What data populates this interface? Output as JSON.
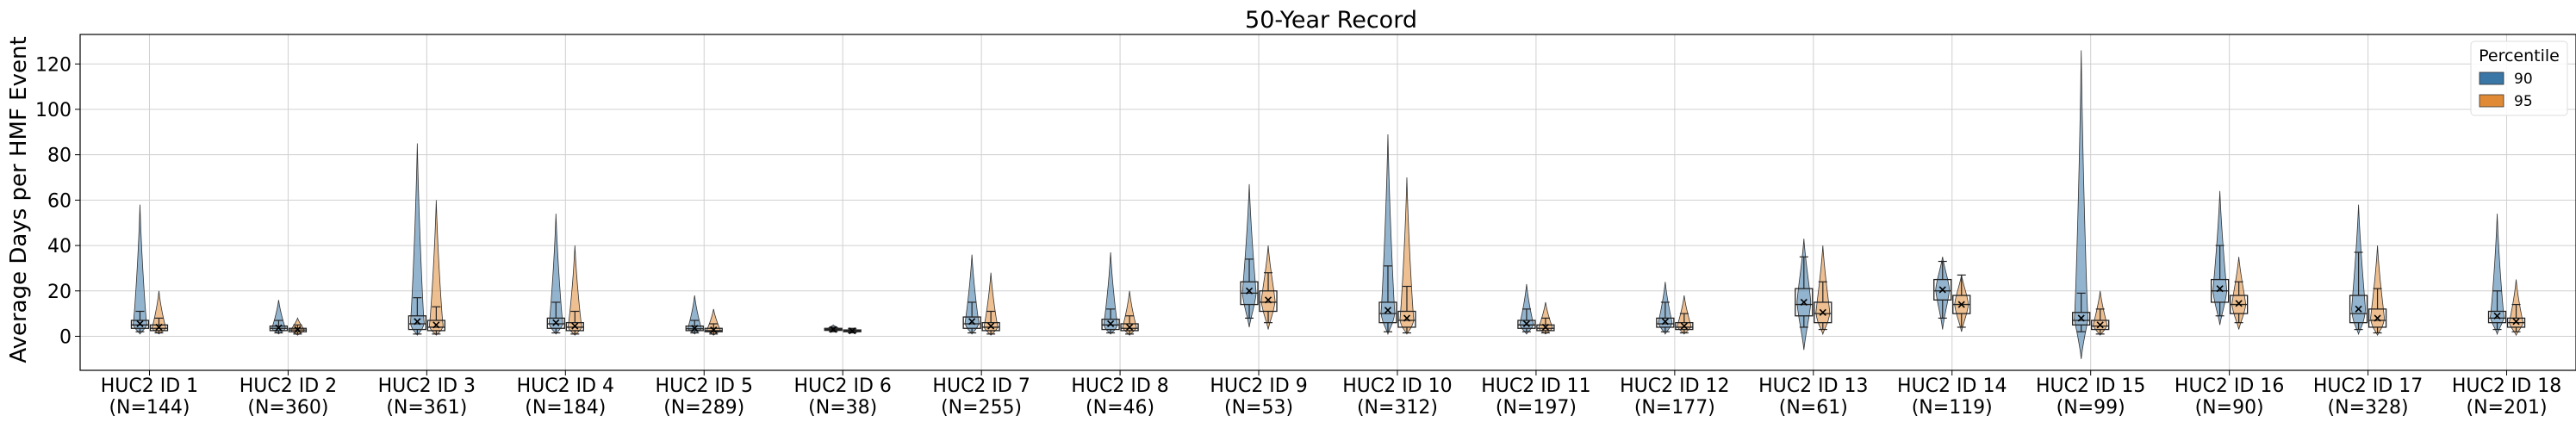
{
  "chart_data": {
    "type": "box",
    "title": "50-Year Record",
    "xlabel": "",
    "ylabel": "Average Days per HMF Event",
    "ylim": [
      -15,
      133
    ],
    "yticks": [
      0,
      20,
      40,
      60,
      80,
      100,
      120
    ],
    "grid": true,
    "legend": {
      "title": "Percentile",
      "position": "top-right",
      "entries": [
        {
          "label": "90",
          "color": "#3a76a6"
        },
        {
          "label": "95",
          "color": "#e08a35"
        }
      ]
    },
    "categories": [
      {
        "label": "HUC2 ID 1",
        "n": "(N=144)"
      },
      {
        "label": "HUC2 ID 2",
        "n": "(N=360)"
      },
      {
        "label": "HUC2 ID 3",
        "n": "(N=361)"
      },
      {
        "label": "HUC2 ID 4",
        "n": "(N=184)"
      },
      {
        "label": "HUC2 ID 5",
        "n": "(N=289)"
      },
      {
        "label": "HUC2 ID 6",
        "n": "(N=38)"
      },
      {
        "label": "HUC2 ID 7",
        "n": "(N=255)"
      },
      {
        "label": "HUC2 ID 8",
        "n": "(N=46)"
      },
      {
        "label": "HUC2 ID 9",
        "n": "(N=53)"
      },
      {
        "label": "HUC2 ID 10",
        "n": "(N=312)"
      },
      {
        "label": "HUC2 ID 11",
        "n": "(N=197)"
      },
      {
        "label": "HUC2 ID 12",
        "n": "(N=177)"
      },
      {
        "label": "HUC2 ID 13",
        "n": "(N=61)"
      },
      {
        "label": "HUC2 ID 14",
        "n": "(N=119)"
      },
      {
        "label": "HUC2 ID 15",
        "n": "(N=99)"
      },
      {
        "label": "HUC2 ID 16",
        "n": "(N=90)"
      },
      {
        "label": "HUC2 ID 17",
        "n": "(N=328)"
      },
      {
        "label": "HUC2 ID 18",
        "n": "(N=201)"
      }
    ],
    "series": [
      {
        "name": "90",
        "color": "#3a76a6",
        "boxes": [
          {
            "whislo": 2,
            "q1": 3.5,
            "med": 5,
            "q3": 7,
            "whishi": 11,
            "mean": 5.5,
            "vmin": 1,
            "vmax": 58
          },
          {
            "whislo": 1.5,
            "q1": 2.5,
            "med": 3.5,
            "q3": 4.5,
            "whishi": 7,
            "mean": 3.7,
            "vmin": 1,
            "vmax": 16
          },
          {
            "whislo": 1,
            "q1": 3,
            "med": 5.5,
            "q3": 9,
            "whishi": 17,
            "mean": 6.5,
            "vmin": 0.5,
            "vmax": 85
          },
          {
            "whislo": 1.5,
            "q1": 3.5,
            "med": 5.5,
            "q3": 8,
            "whishi": 15,
            "mean": 6,
            "vmin": 1,
            "vmax": 54
          },
          {
            "whislo": 1.5,
            "q1": 2.5,
            "med": 3.3,
            "q3": 4.5,
            "whishi": 7,
            "mean": 3.5,
            "vmin": 1,
            "vmax": 18
          },
          {
            "whislo": 2,
            "q1": 2.6,
            "med": 3,
            "q3": 3.5,
            "whishi": 4,
            "mean": 3,
            "vmin": 2,
            "vmax": 5
          },
          {
            "whislo": 1.5,
            "q1": 3.5,
            "med": 5.5,
            "q3": 8.5,
            "whishi": 15,
            "mean": 6.5,
            "vmin": 1,
            "vmax": 36
          },
          {
            "whislo": 1.5,
            "q1": 3,
            "med": 5,
            "q3": 7.5,
            "whishi": 12,
            "mean": 5.5,
            "vmin": 1,
            "vmax": 37
          },
          {
            "whislo": 8,
            "q1": 14,
            "med": 19,
            "q3": 24,
            "whishi": 34,
            "mean": 20,
            "vmin": 4,
            "vmax": 67
          },
          {
            "whislo": 2,
            "q1": 6,
            "med": 10,
            "q3": 15,
            "whishi": 31,
            "mean": 11.5,
            "vmin": 1,
            "vmax": 89
          },
          {
            "whislo": 2,
            "q1": 3.5,
            "med": 5,
            "q3": 7,
            "whishi": 12,
            "mean": 5.5,
            "vmin": 1,
            "vmax": 23
          },
          {
            "whislo": 2,
            "q1": 4,
            "med": 5.5,
            "q3": 8,
            "whishi": 15,
            "mean": 6.5,
            "vmin": 1,
            "vmax": 24
          },
          {
            "whislo": 4,
            "q1": 9,
            "med": 14,
            "q3": 21,
            "whishi": 35,
            "mean": 15,
            "vmin": -6,
            "vmax": 43
          },
          {
            "whislo": 8,
            "q1": 16,
            "med": 20,
            "q3": 25,
            "whishi": 33,
            "mean": 20.5,
            "vmin": 3,
            "vmax": 35
          },
          {
            "whislo": 2,
            "q1": 5,
            "med": 7,
            "q3": 10.5,
            "whishi": 19,
            "mean": 8,
            "vmin": -10,
            "vmax": 126
          },
          {
            "whislo": 9,
            "q1": 15,
            "med": 20,
            "q3": 25,
            "whishi": 40,
            "mean": 21,
            "vmin": 5,
            "vmax": 64
          },
          {
            "whislo": 3,
            "q1": 6,
            "med": 10,
            "q3": 18,
            "whishi": 37,
            "mean": 12,
            "vmin": 1,
            "vmax": 58
          },
          {
            "whislo": 3,
            "q1": 6,
            "med": 8,
            "q3": 11,
            "whishi": 20,
            "mean": 9,
            "vmin": 1,
            "vmax": 54
          }
        ]
      },
      {
        "name": "95",
        "color": "#e08a35",
        "boxes": [
          {
            "whislo": 1.5,
            "q1": 2.5,
            "med": 3.5,
            "q3": 5,
            "whishi": 8,
            "mean": 4,
            "vmin": 1,
            "vmax": 20
          },
          {
            "whislo": 1,
            "q1": 2,
            "med": 2.8,
            "q3": 3.5,
            "whishi": 5,
            "mean": 3,
            "vmin": 0.5,
            "vmax": 8
          },
          {
            "whislo": 1,
            "q1": 2.5,
            "med": 4,
            "q3": 7,
            "whishi": 13,
            "mean": 5,
            "vmin": 0.5,
            "vmax": 60
          },
          {
            "whislo": 1,
            "q1": 2.5,
            "med": 4,
            "q3": 6,
            "whishi": 11,
            "mean": 4.5,
            "vmin": 0.5,
            "vmax": 40
          },
          {
            "whislo": 1,
            "q1": 2,
            "med": 2.5,
            "q3": 3.5,
            "whishi": 5.5,
            "mean": 2.8,
            "vmin": 0.5,
            "vmax": 12
          },
          {
            "whislo": 1.5,
            "q1": 2,
            "med": 2.4,
            "q3": 2.8,
            "whishi": 3.5,
            "mean": 2.4,
            "vmin": 1.5,
            "vmax": 3.5
          },
          {
            "whislo": 1,
            "q1": 2.5,
            "med": 4,
            "q3": 6,
            "whishi": 11,
            "mean": 4.5,
            "vmin": 0.5,
            "vmax": 28
          },
          {
            "whislo": 1,
            "q1": 2.5,
            "med": 3.5,
            "q3": 5.5,
            "whishi": 9,
            "mean": 4,
            "vmin": 0.5,
            "vmax": 20
          },
          {
            "whislo": 6,
            "q1": 11,
            "med": 15,
            "q3": 20,
            "whishi": 28,
            "mean": 16,
            "vmin": 3,
            "vmax": 40
          },
          {
            "whislo": 1.5,
            "q1": 4,
            "med": 7,
            "q3": 11,
            "whishi": 22,
            "mean": 8,
            "vmin": 1,
            "vmax": 70
          },
          {
            "whislo": 1.5,
            "q1": 2.5,
            "med": 3.5,
            "q3": 5,
            "whishi": 8,
            "mean": 4,
            "vmin": 1,
            "vmax": 15
          },
          {
            "whislo": 1.5,
            "q1": 3,
            "med": 4,
            "q3": 6,
            "whishi": 10,
            "mean": 4.5,
            "vmin": 1,
            "vmax": 18
          },
          {
            "whislo": 3,
            "q1": 6,
            "med": 10,
            "q3": 15,
            "whishi": 24,
            "mean": 10.5,
            "vmin": 1,
            "vmax": 40
          },
          {
            "whislo": 4,
            "q1": 10,
            "med": 14,
            "q3": 18,
            "whishi": 27,
            "mean": 14,
            "vmin": 2,
            "vmax": 27
          },
          {
            "whislo": 1,
            "q1": 3,
            "med": 4.5,
            "q3": 7,
            "whishi": 12,
            "mean": 5,
            "vmin": 0.5,
            "vmax": 20
          },
          {
            "whislo": 6,
            "q1": 10,
            "med": 14,
            "q3": 18,
            "whishi": 24,
            "mean": 14.5,
            "vmin": 3,
            "vmax": 35
          },
          {
            "whislo": 1.5,
            "q1": 4,
            "med": 7,
            "q3": 12,
            "whishi": 21,
            "mean": 8,
            "vmin": 0.5,
            "vmax": 40
          },
          {
            "whislo": 2,
            "q1": 4,
            "med": 6,
            "q3": 8,
            "whishi": 14,
            "mean": 6.5,
            "vmin": 0.5,
            "vmax": 25
          }
        ]
      }
    ]
  }
}
